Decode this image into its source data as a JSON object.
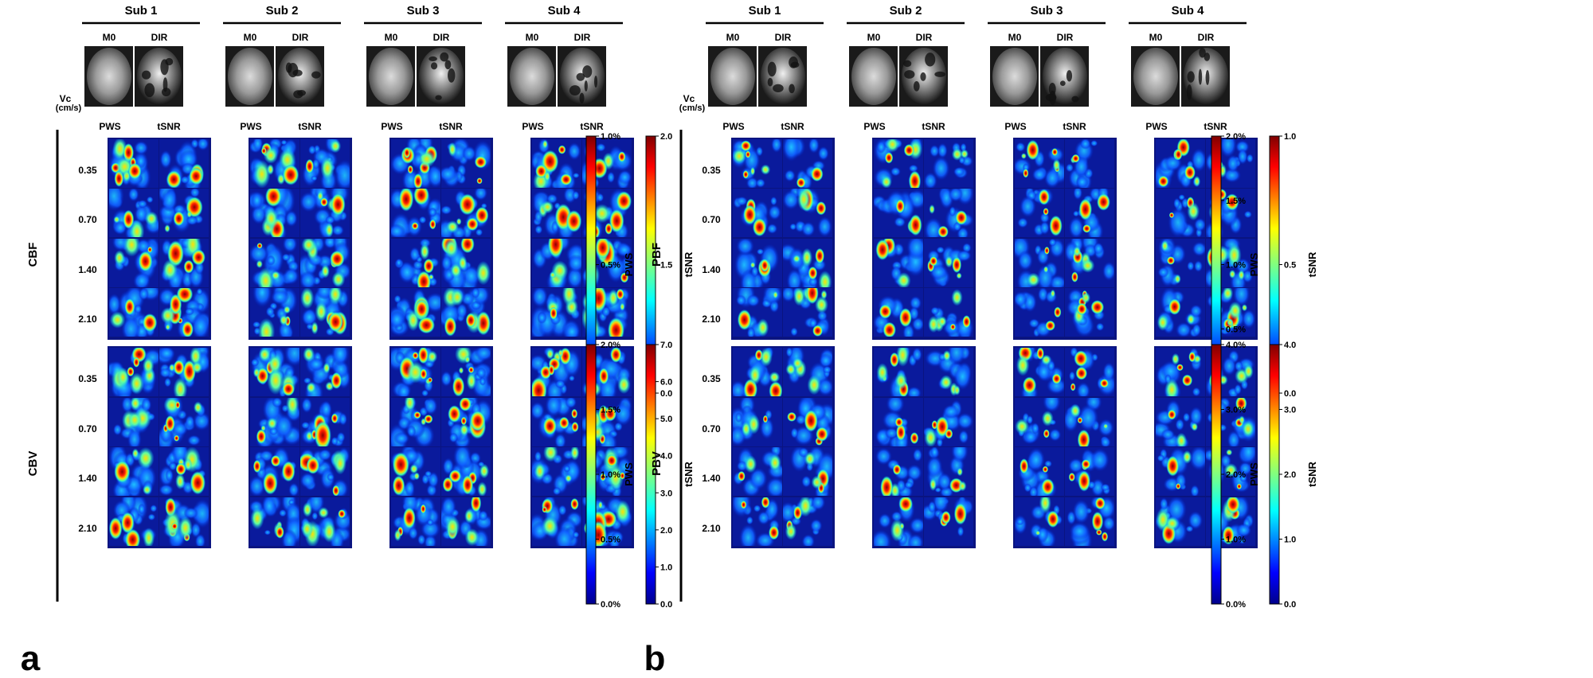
{
  "panels": [
    {
      "letter": "a",
      "subjects": [
        "Sub 1",
        "Sub 2",
        "Sub 3",
        "Sub 4"
      ],
      "anat_labels": [
        "M0",
        "DIR"
      ],
      "map_labels": [
        "PWS",
        "tSNR"
      ],
      "vc_label_line1": "Vc",
      "vc_label_line2": "(cm/s)",
      "vc_values": [
        "0.35",
        "0.70",
        "1.40",
        "2.10"
      ],
      "sections": [
        {
          "name": "CBF",
          "pws_colorbar": {
            "ticks": [
              "1.0%",
              "0.5%",
              "0.0%"
            ],
            "label": "PWS"
          },
          "tsnr_colorbar": {
            "ticks": [
              "2.0",
              "1.5",
              "0.0"
            ],
            "label": "tSNR"
          }
        },
        {
          "name": "CBV",
          "pws_colorbar": {
            "ticks": [
              "2.0%",
              "1.5%",
              "1.0%",
              "0.5%",
              "0.0%"
            ],
            "label": "PWS"
          },
          "tsnr_colorbar": {
            "ticks": [
              "7.0",
              "6.0",
              "5.0",
              "4.0",
              "3.0",
              "2.0",
              "1.0",
              "0.0"
            ],
            "label": "tSNR"
          }
        }
      ]
    },
    {
      "letter": "b",
      "subjects": [
        "Sub 1",
        "Sub 2",
        "Sub 3",
        "Sub 4"
      ],
      "anat_labels": [
        "M0",
        "DIR"
      ],
      "map_labels": [
        "PWS",
        "tSNR"
      ],
      "vc_label_line1": "Vc",
      "vc_label_line2": "(cm/s)",
      "vc_values": [
        "0.35",
        "0.70",
        "1.40",
        "2.10"
      ],
      "sections": [
        {
          "name": "PBF",
          "pws_colorbar": {
            "ticks": [
              "2.0%",
              "1.5%",
              "1.0%",
              "0.5%",
              "0.0%"
            ],
            "label": "PWS"
          },
          "tsnr_colorbar": {
            "ticks": [
              "1.0",
              "0.5",
              "0.0"
            ],
            "label": "tSNR"
          }
        },
        {
          "name": "PBV",
          "pws_colorbar": {
            "ticks": [
              "4.0%",
              "3.0%",
              "2.0%",
              "1.0%",
              "0.0%"
            ],
            "label": "PWS"
          },
          "tsnr_colorbar": {
            "ticks": [
              "4.0",
              "3.0",
              "2.0",
              "1.0",
              "0.0"
            ],
            "label": "tSNR"
          }
        }
      ]
    }
  ],
  "colors": {
    "colormap": [
      "#7f0000",
      "#ff0000",
      "#ff8000",
      "#ffff00",
      "#80ff80",
      "#00ffff",
      "#0080ff",
      "#0000ff",
      "#00008b"
    ],
    "map_background": "#0a1a9c",
    "text": "#000000"
  }
}
